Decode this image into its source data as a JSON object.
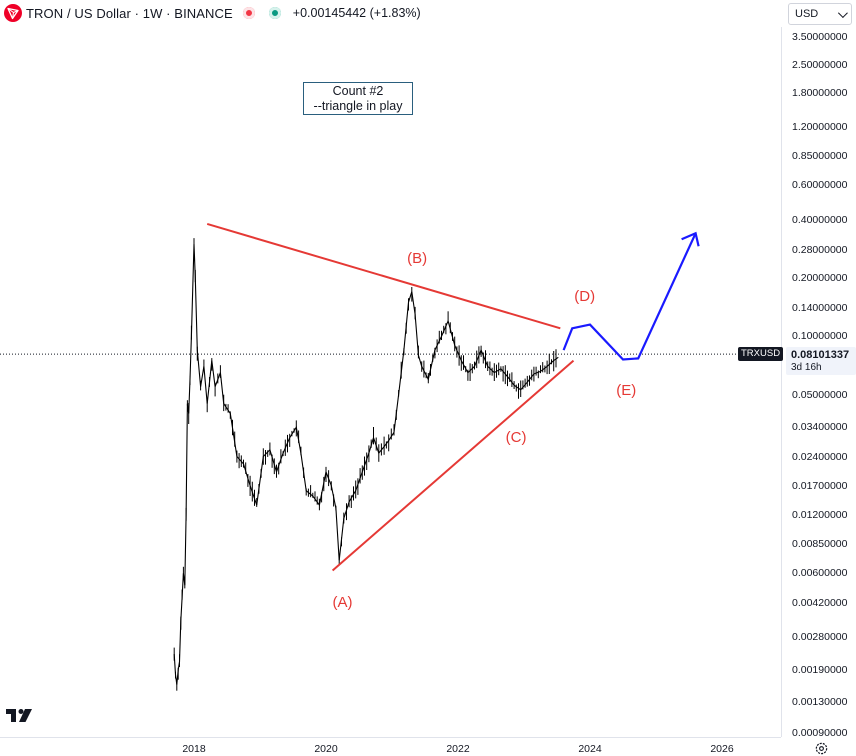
{
  "header": {
    "symbol_title": "TRON / US Dollar · 1W · BINANCE",
    "change_text": "+0.00145442 (+1.83%)",
    "logo_icon": "tron-logo-icon",
    "status_dot_red": "#f23645",
    "status_dot_green": "#089981"
  },
  "currency": {
    "selected": "USD"
  },
  "price_badge": {
    "symbol": "TRXUSD",
    "price": "0.08101337",
    "countdown": "3d 16h"
  },
  "annotation": {
    "line1": "Count #2",
    "line2": "--triangle in play"
  },
  "wave_labels": {
    "A": "(A)",
    "B": "(B)",
    "C": "(C)",
    "D": "(D)",
    "E": "(E)"
  },
  "colors": {
    "candles": "#000000",
    "trendlines": "#e53935",
    "projection": "#1a1aff",
    "labels": "#e53935"
  },
  "chart_data": {
    "type": "line",
    "title": "TRON / US Dollar · 1W · BINANCE",
    "xlabel": "",
    "ylabel": "",
    "y_scale": "log",
    "ylim": [
      0.0009,
      3.5
    ],
    "x_ticks": [
      "2018",
      "2020",
      "2022",
      "2024",
      "2026"
    ],
    "y_ticks": [
      "3.50000000",
      "2.50000000",
      "1.80000000",
      "1.20000000",
      "0.85000000",
      "0.60000000",
      "0.40000000",
      "0.28000000",
      "0.20000000",
      "0.14000000",
      "0.10000000",
      "0.05000000",
      "0.03400000",
      "0.02400000",
      "0.01700000",
      "0.01200000",
      "0.00850000",
      "0.00600000",
      "0.00420000",
      "0.00280000",
      "0.00190000",
      "0.00130000",
      "0.00090000"
    ],
    "last_price": 0.08101337,
    "series": [
      {
        "values": [
          [
            2017.7,
            0.0023
          ],
          [
            2017.72,
            0.0018
          ],
          [
            2017.74,
            0.0016
          ],
          [
            2017.76,
            0.0019
          ],
          [
            2017.78,
            0.0021
          ],
          [
            2017.8,
            0.0034
          ],
          [
            2017.82,
            0.0045
          ],
          [
            2017.84,
            0.006
          ],
          [
            2017.86,
            0.0052
          ],
          [
            2017.88,
            0.012
          ],
          [
            2017.9,
            0.045
          ],
          [
            2017.92,
            0.04
          ],
          [
            2017.94,
            0.06
          ],
          [
            2017.96,
            0.1
          ],
          [
            2018.0,
            0.3
          ],
          [
            2018.02,
            0.2
          ],
          [
            2018.05,
            0.085
          ],
          [
            2018.1,
            0.055
          ],
          [
            2018.15,
            0.07
          ],
          [
            2018.2,
            0.045
          ],
          [
            2018.27,
            0.075
          ],
          [
            2018.32,
            0.055
          ],
          [
            2018.4,
            0.065
          ],
          [
            2018.45,
            0.045
          ],
          [
            2018.55,
            0.04
          ],
          [
            2018.65,
            0.024
          ],
          [
            2018.75,
            0.022
          ],
          [
            2018.85,
            0.017
          ],
          [
            2018.95,
            0.0135
          ],
          [
            2019.05,
            0.024
          ],
          [
            2019.15,
            0.026
          ],
          [
            2019.25,
            0.02
          ],
          [
            2019.35,
            0.025
          ],
          [
            2019.45,
            0.03
          ],
          [
            2019.55,
            0.034
          ],
          [
            2019.62,
            0.025
          ],
          [
            2019.7,
            0.016
          ],
          [
            2019.8,
            0.015
          ],
          [
            2019.9,
            0.0135
          ],
          [
            2020.0,
            0.02
          ],
          [
            2020.08,
            0.017
          ],
          [
            2020.15,
            0.013
          ],
          [
            2020.2,
            0.007
          ],
          [
            2020.27,
            0.0115
          ],
          [
            2020.35,
            0.014
          ],
          [
            2020.45,
            0.016
          ],
          [
            2020.55,
            0.02
          ],
          [
            2020.65,
            0.025
          ],
          [
            2020.72,
            0.03
          ],
          [
            2020.8,
            0.025
          ],
          [
            2020.88,
            0.027
          ],
          [
            2020.95,
            0.029
          ],
          [
            2021.03,
            0.032
          ],
          [
            2021.1,
            0.05
          ],
          [
            2021.18,
            0.085
          ],
          [
            2021.25,
            0.15
          ],
          [
            2021.3,
            0.17
          ],
          [
            2021.35,
            0.13
          ],
          [
            2021.4,
            0.08
          ],
          [
            2021.45,
            0.07
          ],
          [
            2021.55,
            0.06
          ],
          [
            2021.65,
            0.085
          ],
          [
            2021.75,
            0.1
          ],
          [
            2021.85,
            0.12
          ],
          [
            2021.95,
            0.09
          ],
          [
            2022.05,
            0.075
          ],
          [
            2022.15,
            0.065
          ],
          [
            2022.25,
            0.07
          ],
          [
            2022.35,
            0.085
          ],
          [
            2022.45,
            0.07
          ],
          [
            2022.55,
            0.065
          ],
          [
            2022.65,
            0.068
          ],
          [
            2022.75,
            0.062
          ],
          [
            2022.85,
            0.056
          ],
          [
            2022.95,
            0.053
          ],
          [
            2023.05,
            0.058
          ],
          [
            2023.15,
            0.064
          ],
          [
            2023.25,
            0.066
          ],
          [
            2023.35,
            0.07
          ],
          [
            2023.45,
            0.075
          ],
          [
            2023.52,
            0.078
          ]
        ]
      }
    ],
    "trendlines": [
      {
        "color": "#e53935",
        "from": [
          2018.2,
          0.38
        ],
        "to": [
          2023.55,
          0.11
        ]
      },
      {
        "color": "#e53935",
        "from": [
          2020.1,
          0.0062
        ],
        "to": [
          2023.75,
          0.075
        ]
      }
    ],
    "projection": {
      "color": "#1a1aff",
      "points": [
        [
          2023.6,
          0.085
        ],
        [
          2023.73,
          0.11
        ],
        [
          2024.0,
          0.115
        ],
        [
          2024.5,
          0.076
        ],
        [
          2024.73,
          0.077
        ],
        [
          2025.6,
          0.34
        ]
      ]
    },
    "annotations": [
      {
        "text": "Count #2",
        "x": 2020.5,
        "y": 1.8
      },
      {
        "text": "--triangle in play",
        "x": 2020.5,
        "y": 1.55
      },
      {
        "text": "(A)",
        "x": 2020.25,
        "y": 0.0042
      },
      {
        "text": "(B)",
        "x": 2021.38,
        "y": 0.25
      },
      {
        "text": "(C)",
        "x": 2022.88,
        "y": 0.03
      },
      {
        "text": "(D)",
        "x": 2023.92,
        "y": 0.16
      },
      {
        "text": "(E)",
        "x": 2024.55,
        "y": 0.052
      }
    ],
    "grid": false,
    "legend": "none"
  }
}
